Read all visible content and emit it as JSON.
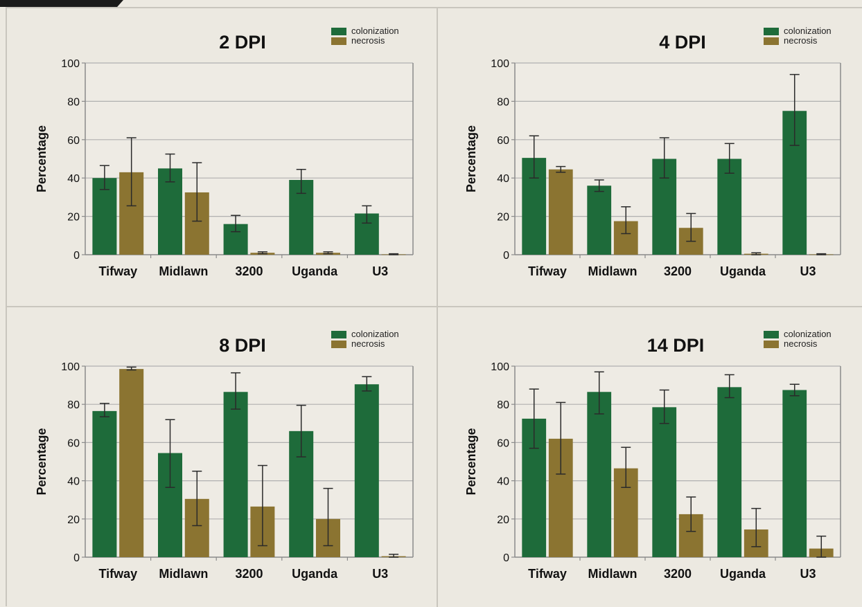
{
  "colors": {
    "colonization": "#1e6b3a",
    "necrosis": "#8b7431",
    "grid": "#b0b0b0",
    "axis": "#8a8a8a",
    "errorbar": "#2a2a2a"
  },
  "chart_data": [
    {
      "type": "bar",
      "title": "2 DPI",
      "ylabel": "Percentage",
      "xlabel": "",
      "ylim": [
        0,
        100
      ],
      "yticks": [
        0,
        20,
        40,
        60,
        80,
        100
      ],
      "grid": true,
      "legend": "top-right",
      "categories": [
        "Tifway",
        "Midlawn",
        "3200",
        "Uganda",
        "U3"
      ],
      "series": [
        {
          "name": "colonization",
          "values": [
            40,
            45,
            16,
            39,
            21.5
          ],
          "errors": [
            [
              34,
              46.5
            ],
            [
              38,
              52.5
            ],
            [
              12,
              20.5
            ],
            [
              32,
              44.5
            ],
            [
              16.5,
              25.5
            ]
          ]
        },
        {
          "name": "necrosis",
          "values": [
            43,
            32.5,
            1,
            1,
            0.2
          ],
          "errors": [
            [
              25.5,
              61
            ],
            [
              17.5,
              48
            ],
            [
              0.5,
              1.5
            ],
            [
              0.5,
              1.5
            ],
            [
              0,
              0.5
            ]
          ]
        }
      ]
    },
    {
      "type": "bar",
      "title": "4 DPI",
      "ylabel": "Percentage",
      "xlabel": "",
      "ylim": [
        0,
        100
      ],
      "yticks": [
        0,
        20,
        40,
        60,
        80,
        100
      ],
      "grid": true,
      "legend": "top-right",
      "categories": [
        "Tifway",
        "Midlawn",
        "3200",
        "Uganda",
        "U3"
      ],
      "series": [
        {
          "name": "colonization",
          "values": [
            50.5,
            36,
            50,
            50,
            75
          ],
          "errors": [
            [
              40,
              62
            ],
            [
              33,
              39
            ],
            [
              40,
              61
            ],
            [
              42.5,
              58
            ],
            [
              57,
              94
            ]
          ]
        },
        {
          "name": "necrosis",
          "values": [
            44.5,
            17.5,
            14,
            0.5,
            0.2
          ],
          "errors": [
            [
              43,
              46
            ],
            [
              11,
              25
            ],
            [
              7,
              21.5
            ],
            [
              0,
              1
            ],
            [
              0,
              0.5
            ]
          ]
        }
      ]
    },
    {
      "type": "bar",
      "title": "8 DPI",
      "ylabel": "Percentage",
      "xlabel": "",
      "ylim": [
        0,
        100
      ],
      "yticks": [
        0,
        20,
        40,
        60,
        80,
        100
      ],
      "grid": true,
      "legend": "top-right",
      "categories": [
        "Tifway",
        "Midlawn",
        "3200",
        "Uganda",
        "U3"
      ],
      "series": [
        {
          "name": "colonization",
          "values": [
            76.5,
            54.5,
            86.5,
            66,
            90.5
          ],
          "errors": [
            [
              73.5,
              80.5
            ],
            [
              36.5,
              72
            ],
            [
              77.5,
              96.5
            ],
            [
              52.5,
              79.5
            ],
            [
              87,
              94.5
            ]
          ]
        },
        {
          "name": "necrosis",
          "values": [
            98.5,
            30.5,
            26.5,
            20,
            0.5
          ],
          "errors": [
            [
              98,
              99.5
            ],
            [
              16.5,
              45
            ],
            [
              6,
              48
            ],
            [
              6,
              36
            ],
            [
              0,
              1.5
            ]
          ]
        }
      ]
    },
    {
      "type": "bar",
      "title": "14 DPI",
      "ylabel": "Percentage",
      "xlabel": "",
      "ylim": [
        0,
        100
      ],
      "yticks": [
        0,
        20,
        40,
        60,
        80,
        100
      ],
      "grid": true,
      "legend": "top-right",
      "categories": [
        "Tifway",
        "Midlawn",
        "3200",
        "Uganda",
        "U3"
      ],
      "series": [
        {
          "name": "colonization",
          "values": [
            72.5,
            86.5,
            78.5,
            89,
            87.5
          ],
          "errors": [
            [
              57,
              88
            ],
            [
              75,
              97
            ],
            [
              70,
              87.5
            ],
            [
              83.5,
              95.5
            ],
            [
              84.5,
              90.5
            ]
          ]
        },
        {
          "name": "necrosis",
          "values": [
            62,
            46.5,
            22.5,
            14.5,
            4.5
          ],
          "errors": [
            [
              43.5,
              81
            ],
            [
              36.5,
              57.5
            ],
            [
              13.5,
              31.5
            ],
            [
              5.5,
              25.5
            ],
            [
              0,
              11
            ]
          ]
        }
      ]
    }
  ]
}
